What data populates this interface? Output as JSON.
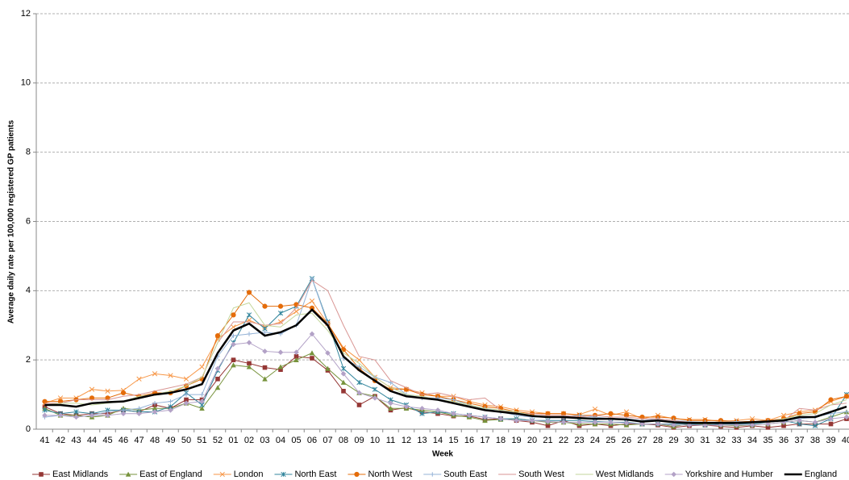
{
  "chart_data": {
    "type": "line",
    "x_label": "Week",
    "y_label": "Average daily rate per 100,000 registered GP patients",
    "categories": [
      "41",
      "42",
      "43",
      "44",
      "45",
      "46",
      "47",
      "48",
      "49",
      "50",
      "51",
      "52",
      "01",
      "02",
      "03",
      "04",
      "05",
      "06",
      "07",
      "08",
      "09",
      "10",
      "11",
      "12",
      "13",
      "14",
      "15",
      "16",
      "17",
      "18",
      "19",
      "20",
      "21",
      "22",
      "23",
      "24",
      "25",
      "26",
      "27",
      "28",
      "29",
      "30",
      "31",
      "32",
      "33",
      "34",
      "35",
      "36",
      "37",
      "38",
      "39",
      "40"
    ],
    "ylim": [
      0,
      12
    ],
    "yticks": [
      0,
      2,
      4,
      6,
      8,
      10,
      12
    ],
    "grid": true,
    "series": [
      {
        "name": "East Midlands",
        "color": "#953735",
        "marker": "square",
        "values": [
          0.65,
          0.45,
          0.4,
          0.45,
          0.45,
          0.55,
          0.5,
          0.7,
          0.6,
          0.85,
          0.85,
          1.45,
          2.0,
          1.9,
          1.78,
          1.72,
          2.1,
          2.05,
          1.7,
          1.1,
          0.7,
          0.95,
          0.55,
          0.62,
          0.5,
          0.45,
          0.38,
          0.38,
          0.28,
          0.3,
          0.25,
          0.2,
          0.1,
          0.25,
          0.1,
          0.15,
          0.1,
          0.15,
          0.15,
          0.12,
          0.05,
          0.1,
          0.12,
          0.08,
          0.05,
          0.1,
          0.05,
          0.1,
          0.15,
          0.15,
          0.15,
          0.3
        ]
      },
      {
        "name": "East of England",
        "color": "#77933c",
        "marker": "triangle",
        "values": [
          0.6,
          0.4,
          0.4,
          0.35,
          0.4,
          0.6,
          0.55,
          0.6,
          0.6,
          0.75,
          0.6,
          1.2,
          1.85,
          1.8,
          1.45,
          1.8,
          2.0,
          2.2,
          1.75,
          1.35,
          1.05,
          0.95,
          0.6,
          0.6,
          0.55,
          0.5,
          0.4,
          0.35,
          0.25,
          0.28,
          0.3,
          0.25,
          0.2,
          0.2,
          0.15,
          0.15,
          0.15,
          0.12,
          0.15,
          0.15,
          0.08,
          0.15,
          0.15,
          0.12,
          0.1,
          0.12,
          0.15,
          0.2,
          0.25,
          0.2,
          0.35,
          0.5
        ]
      },
      {
        "name": "London",
        "color": "#f79646",
        "marker": "x",
        "values": [
          0.75,
          0.9,
          0.9,
          1.15,
          1.1,
          1.12,
          1.45,
          1.6,
          1.55,
          1.45,
          1.8,
          2.6,
          2.95,
          3.15,
          2.95,
          3.1,
          3.4,
          3.7,
          3.05,
          2.35,
          2.0,
          1.5,
          1.2,
          1.15,
          1.05,
          0.95,
          0.95,
          0.8,
          0.7,
          0.65,
          0.55,
          0.5,
          0.45,
          0.45,
          0.42,
          0.58,
          0.4,
          0.5,
          0.3,
          0.4,
          0.3,
          0.28,
          0.28,
          0.22,
          0.25,
          0.3,
          0.25,
          0.4,
          0.5,
          0.55,
          0.8,
          0.95
        ]
      },
      {
        "name": "North East",
        "color": "#31859c",
        "marker": "asterisk",
        "values": [
          0.55,
          0.45,
          0.5,
          0.45,
          0.55,
          0.55,
          0.5,
          0.5,
          0.65,
          1.05,
          0.7,
          1.7,
          2.5,
          3.3,
          2.9,
          3.35,
          3.55,
          4.35,
          3.1,
          1.75,
          1.35,
          1.15,
          0.85,
          0.7,
          0.45,
          0.5,
          0.45,
          0.4,
          0.35,
          0.3,
          0.3,
          0.25,
          0.25,
          0.25,
          0.25,
          0.22,
          0.2,
          0.2,
          0.15,
          0.15,
          0.15,
          0.15,
          0.12,
          0.15,
          0.15,
          0.15,
          0.2,
          0.25,
          0.15,
          0.1,
          0.3,
          1.0
        ]
      },
      {
        "name": "North West",
        "color": "#e46c0a",
        "marker": "circle",
        "values": [
          0.8,
          0.8,
          0.85,
          0.9,
          0.9,
          1.05,
          0.95,
          1.05,
          1.05,
          1.25,
          1.45,
          2.7,
          3.3,
          3.95,
          3.55,
          3.55,
          3.6,
          3.5,
          3.05,
          2.3,
          1.75,
          1.4,
          1.15,
          1.15,
          1.0,
          0.95,
          0.85,
          0.75,
          0.65,
          0.6,
          0.5,
          0.45,
          0.45,
          0.45,
          0.4,
          0.4,
          0.45,
          0.4,
          0.35,
          0.35,
          0.32,
          0.25,
          0.25,
          0.25,
          0.22,
          0.22,
          0.25,
          0.3,
          0.45,
          0.5,
          0.85,
          0.95
        ]
      },
      {
        "name": "South East",
        "color": "#95b3d7",
        "marker": "plus",
        "values": [
          0.35,
          0.4,
          0.35,
          0.4,
          0.5,
          0.55,
          0.6,
          0.75,
          0.8,
          1.0,
          1.0,
          2.1,
          2.7,
          2.75,
          2.8,
          2.75,
          3.0,
          4.35,
          3.05,
          2.05,
          1.8,
          1.5,
          1.35,
          1.0,
          0.9,
          0.9,
          0.85,
          0.7,
          0.6,
          0.5,
          0.4,
          0.35,
          0.35,
          0.35,
          0.4,
          0.35,
          0.3,
          0.3,
          0.25,
          0.3,
          0.25,
          0.22,
          0.2,
          0.2,
          0.22,
          0.2,
          0.22,
          0.25,
          0.3,
          0.35,
          0.45,
          0.5
        ]
      },
      {
        "name": "South West",
        "color": "#d99694",
        "marker": "none",
        "values": [
          0.75,
          0.75,
          0.85,
          0.85,
          0.85,
          0.95,
          1.0,
          1.1,
          1.2,
          1.3,
          1.5,
          2.5,
          3.1,
          3.1,
          3.0,
          3.05,
          3.5,
          4.3,
          4.0,
          3.0,
          2.1,
          2.0,
          1.4,
          1.2,
          1.0,
          1.05,
          0.95,
          0.85,
          0.9,
          0.55,
          0.45,
          0.45,
          0.4,
          0.4,
          0.35,
          0.4,
          0.35,
          0.35,
          0.3,
          0.3,
          0.25,
          0.2,
          0.2,
          0.2,
          0.2,
          0.2,
          0.2,
          0.25,
          0.6,
          0.55,
          0.7,
          0.75
        ]
      },
      {
        "name": "West Midlands",
        "color": "#c3d69b",
        "marker": "none",
        "values": [
          0.7,
          0.75,
          0.75,
          0.7,
          0.75,
          0.8,
          0.95,
          1.0,
          1.1,
          1.25,
          1.5,
          2.5,
          3.5,
          3.65,
          3.0,
          2.95,
          3.3,
          3.35,
          2.85,
          2.2,
          1.9,
          1.5,
          1.2,
          1.0,
          0.95,
          0.85,
          0.8,
          0.7,
          0.6,
          0.55,
          0.5,
          0.4,
          0.35,
          0.35,
          0.3,
          0.3,
          0.3,
          0.28,
          0.22,
          0.25,
          0.2,
          0.2,
          0.2,
          0.2,
          0.2,
          0.2,
          0.22,
          0.3,
          0.4,
          0.45,
          0.7,
          0.85
        ]
      },
      {
        "name": "Yorkshire and Humber",
        "color": "#b3a2c7",
        "marker": "diamond",
        "values": [
          0.4,
          0.4,
          0.35,
          0.4,
          0.4,
          0.45,
          0.45,
          0.5,
          0.55,
          0.75,
          0.8,
          1.75,
          2.45,
          2.5,
          2.25,
          2.22,
          2.22,
          2.75,
          2.2,
          1.6,
          1.05,
          0.9,
          0.75,
          0.65,
          0.6,
          0.55,
          0.45,
          0.4,
          0.35,
          0.3,
          0.25,
          0.25,
          0.22,
          0.2,
          0.2,
          0.2,
          0.2,
          0.18,
          0.15,
          0.15,
          0.12,
          0.12,
          0.12,
          0.12,
          0.12,
          0.12,
          0.15,
          0.2,
          0.25,
          0.2,
          0.3,
          0.35
        ]
      },
      {
        "name": "England",
        "color": "#000000",
        "marker": "none",
        "width": 2.5,
        "values": [
          0.7,
          0.7,
          0.65,
          0.75,
          0.78,
          0.8,
          0.9,
          1.0,
          1.05,
          1.15,
          1.3,
          2.2,
          2.85,
          3.05,
          2.7,
          2.8,
          3.0,
          3.45,
          3.0,
          2.1,
          1.7,
          1.4,
          1.1,
          0.95,
          0.9,
          0.85,
          0.75,
          0.65,
          0.55,
          0.5,
          0.45,
          0.38,
          0.35,
          0.35,
          0.32,
          0.3,
          0.3,
          0.28,
          0.22,
          0.25,
          0.2,
          0.18,
          0.18,
          0.18,
          0.18,
          0.2,
          0.22,
          0.25,
          0.35,
          0.35,
          0.5,
          0.65
        ]
      }
    ]
  }
}
